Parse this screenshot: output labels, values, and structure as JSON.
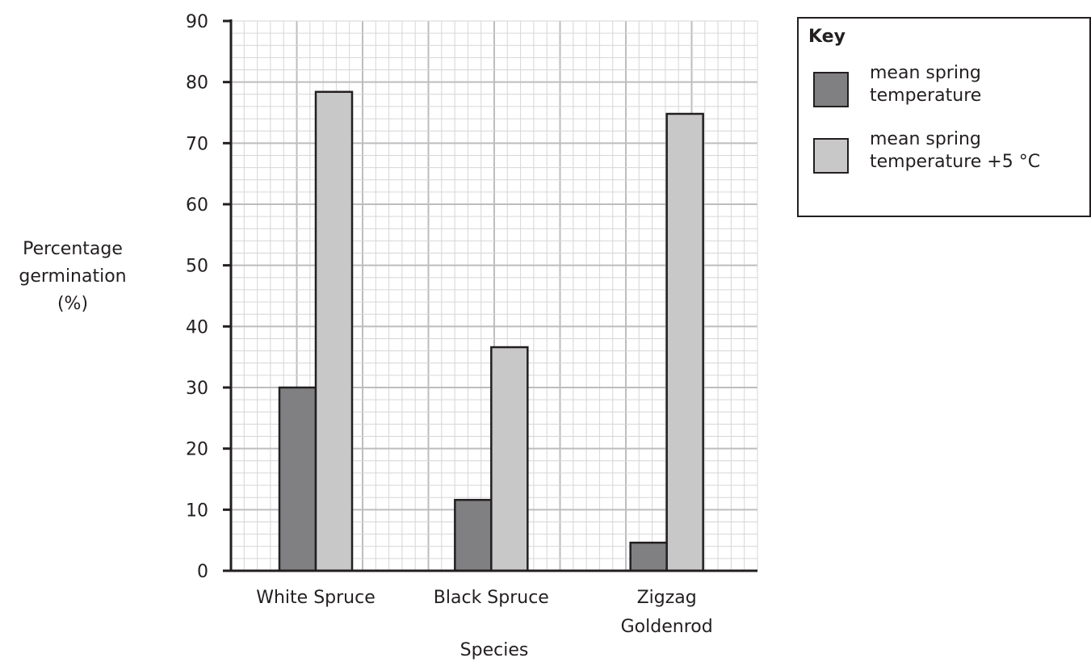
{
  "chart_data": {
    "type": "bar",
    "categories": [
      "White Spruce",
      "Black Spruce",
      "Zigzag Goldenrod"
    ],
    "category_lines": [
      [
        "White Spruce"
      ],
      [
        "Black Spruce"
      ],
      [
        "Zigzag",
        "Goldenrod"
      ]
    ],
    "series": [
      {
        "name": "mean spring temperature",
        "values": [
          30,
          11.6,
          4.6
        ],
        "color": "#808083"
      },
      {
        "name": "mean spring temperature +5 °C",
        "values": [
          78.4,
          36.6,
          74.8
        ],
        "color": "#c8c8c9"
      }
    ],
    "title": "",
    "xlabel": "Species",
    "ylabel_lines": [
      "Percentage",
      "germination",
      "(%)"
    ],
    "ylim": [
      0,
      90
    ],
    "yticks": [
      0,
      10,
      20,
      30,
      40,
      50,
      60,
      70,
      80,
      90
    ],
    "grid": true,
    "legend_position": "top-right"
  },
  "key": {
    "title": "Key",
    "items": [
      {
        "label_lines": [
          "mean spring",
          "temperature"
        ],
        "color": "#808083"
      },
      {
        "label_lines": [
          "mean spring",
          "temperature +5 °C"
        ],
        "color": "#c8c8c9"
      }
    ]
  }
}
